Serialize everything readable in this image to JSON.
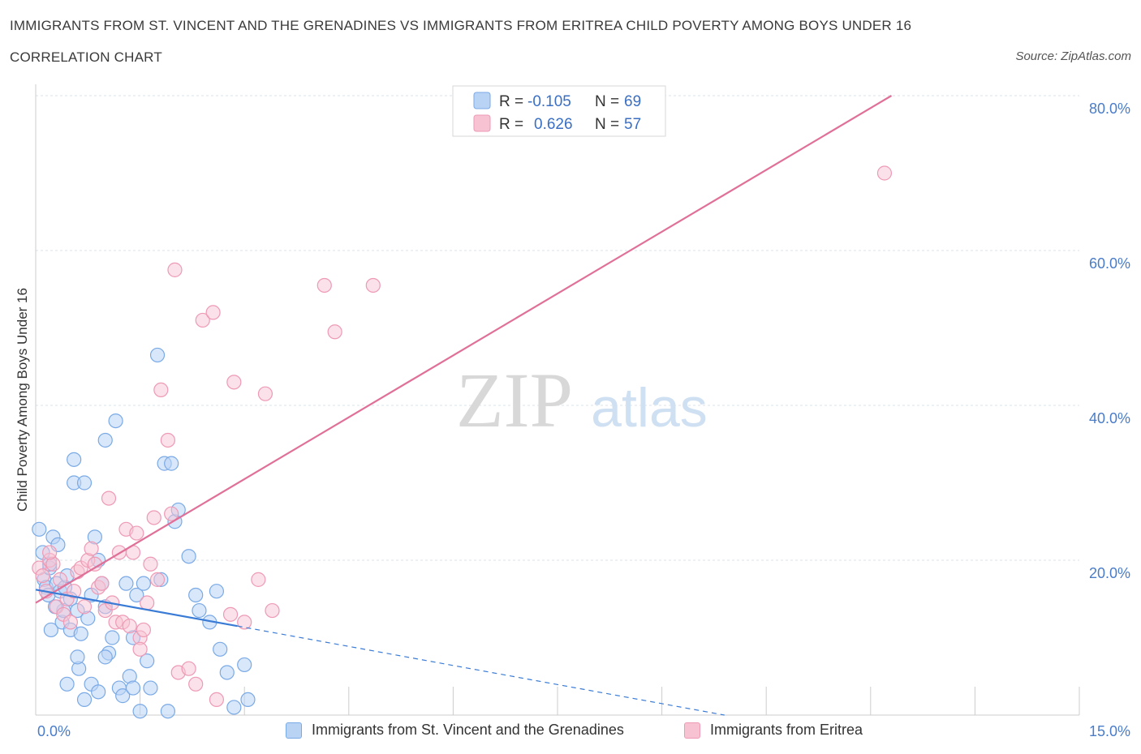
{
  "header": {
    "title": "IMMIGRANTS FROM ST. VINCENT AND THE GRENADINES VS IMMIGRANTS FROM ERITREA CHILD POVERTY AMONG BOYS UNDER 16",
    "subtitle": "CORRELATION CHART",
    "source": "Source: ZipAtlas.com"
  },
  "watermark": {
    "zip": "ZIP",
    "atlas": "atlas"
  },
  "colors": {
    "blue_fill": "#b9d3f5",
    "blue_stroke": "#7aaae6",
    "blue_line": "#3a7bd5",
    "pink_fill": "#f7c3d3",
    "pink_stroke": "#ee9ab5",
    "pink_line": "#e07098",
    "axis_text": "#4a7cc8",
    "grid": "#dde3ea"
  },
  "legend_stats": [
    {
      "r_label": "R =",
      "r_value": "-0.105",
      "n_label": "N =",
      "n_value": "69"
    },
    {
      "r_label": "R =",
      "r_value": "0.626",
      "n_label": "N =",
      "n_value": "57"
    }
  ],
  "legend_bottom": [
    "Immigrants from St. Vincent and the Grenadines",
    "Immigrants from Eritrea"
  ],
  "chart_data": {
    "type": "scatter",
    "title": "IMMIGRANTS FROM ST. VINCENT AND THE GRENADINES VS IMMIGRANTS FROM ERITREA CHILD POVERTY AMONG BOYS UNDER 16",
    "xlabel": "",
    "ylabel": "Child Poverty Among Boys Under 16",
    "xlim": [
      0,
      15
    ],
    "ylim": [
      0,
      80
    ],
    "x_tick_labels": [
      "0.0%",
      "15.0%"
    ],
    "y_ticks": [
      20,
      40,
      60,
      80
    ],
    "y_tick_labels": [
      "20.0%",
      "40.0%",
      "60.0%",
      "80.0%"
    ],
    "series": [
      {
        "name": "Immigrants from St. Vincent and the Grenadines",
        "color": "blue",
        "points": [
          [
            0.05,
            24.0
          ],
          [
            0.1,
            21.0
          ],
          [
            0.12,
            17.5
          ],
          [
            0.15,
            16.5
          ],
          [
            0.18,
            15.5
          ],
          [
            0.2,
            19.0
          ],
          [
            0.22,
            11.0
          ],
          [
            0.25,
            23.0
          ],
          [
            0.3,
            17.0
          ],
          [
            0.32,
            22.0
          ],
          [
            0.35,
            16.0
          ],
          [
            0.38,
            12.0
          ],
          [
            0.4,
            13.5
          ],
          [
            0.42,
            16.5
          ],
          [
            0.45,
            18.0
          ],
          [
            0.45,
            4.0
          ],
          [
            0.5,
            15.0
          ],
          [
            0.5,
            11.0
          ],
          [
            0.55,
            33.0
          ],
          [
            0.55,
            30.0
          ],
          [
            0.6,
            13.5
          ],
          [
            0.62,
            6.0
          ],
          [
            0.65,
            10.5
          ],
          [
            0.7,
            30.0
          ],
          [
            0.75,
            12.5
          ],
          [
            0.8,
            15.5
          ],
          [
            0.8,
            4.0
          ],
          [
            0.85,
            23.0
          ],
          [
            0.9,
            3.0
          ],
          [
            0.95,
            17.0
          ],
          [
            1.0,
            35.5
          ],
          [
            1.0,
            14.0
          ],
          [
            1.05,
            8.0
          ],
          [
            1.1,
            10.0
          ],
          [
            1.15,
            38.0
          ],
          [
            1.2,
            3.5
          ],
          [
            1.25,
            2.5
          ],
          [
            1.3,
            17.0
          ],
          [
            1.35,
            5.0
          ],
          [
            1.4,
            3.5
          ],
          [
            1.45,
            15.5
          ],
          [
            1.5,
            0.5
          ],
          [
            1.55,
            17.0
          ],
          [
            1.6,
            7.0
          ],
          [
            1.65,
            3.5
          ],
          [
            1.75,
            46.5
          ],
          [
            1.8,
            17.5
          ],
          [
            1.85,
            32.5
          ],
          [
            1.9,
            0.5
          ],
          [
            1.95,
            32.5
          ],
          [
            2.0,
            25.0
          ],
          [
            2.05,
            26.5
          ],
          [
            2.2,
            20.5
          ],
          [
            2.3,
            15.5
          ],
          [
            2.35,
            13.5
          ],
          [
            2.5,
            12.0
          ],
          [
            2.6,
            16.0
          ],
          [
            2.65,
            8.5
          ],
          [
            2.75,
            5.5
          ],
          [
            2.85,
            1.0
          ],
          [
            3.0,
            6.5
          ],
          [
            3.05,
            2.0
          ],
          [
            0.28,
            14.0
          ],
          [
            0.6,
            7.5
          ],
          [
            1.0,
            7.5
          ],
          [
            0.7,
            2.0
          ],
          [
            1.4,
            10.0
          ],
          [
            0.9,
            20.0
          ],
          [
            0.2,
            19.5
          ]
        ],
        "trend_solid": [
          [
            0.0,
            16.2
          ],
          [
            2.9,
            11.5
          ]
        ],
        "trend_dashed": [
          [
            2.9,
            11.5
          ],
          [
            9.9,
            0.0
          ]
        ]
      },
      {
        "name": "Immigrants from Eritrea",
        "color": "pink",
        "points": [
          [
            0.05,
            19.0
          ],
          [
            0.1,
            18.0
          ],
          [
            0.15,
            16.0
          ],
          [
            0.2,
            20.0
          ],
          [
            0.25,
            19.5
          ],
          [
            0.3,
            14.0
          ],
          [
            0.35,
            17.5
          ],
          [
            0.4,
            13.0
          ],
          [
            0.45,
            15.0
          ],
          [
            0.5,
            12.0
          ],
          [
            0.55,
            16.0
          ],
          [
            0.6,
            18.5
          ],
          [
            0.65,
            19.0
          ],
          [
            0.7,
            14.0
          ],
          [
            0.75,
            20.0
          ],
          [
            0.8,
            21.5
          ],
          [
            0.85,
            19.5
          ],
          [
            0.9,
            16.5
          ],
          [
            0.95,
            17.0
          ],
          [
            1.0,
            13.5
          ],
          [
            1.05,
            28.0
          ],
          [
            1.1,
            14.5
          ],
          [
            1.15,
            12.0
          ],
          [
            1.2,
            21.0
          ],
          [
            1.25,
            12.0
          ],
          [
            1.3,
            24.0
          ],
          [
            1.35,
            11.5
          ],
          [
            1.4,
            21.0
          ],
          [
            1.45,
            23.5
          ],
          [
            1.5,
            10.0
          ],
          [
            1.55,
            11.0
          ],
          [
            1.6,
            14.5
          ],
          [
            1.65,
            19.5
          ],
          [
            1.7,
            25.5
          ],
          [
            1.75,
            17.5
          ],
          [
            1.8,
            42.0
          ],
          [
            1.9,
            35.5
          ],
          [
            1.95,
            26.0
          ],
          [
            2.0,
            57.5
          ],
          [
            2.05,
            5.5
          ],
          [
            2.2,
            6.0
          ],
          [
            2.3,
            4.0
          ],
          [
            2.4,
            51.0
          ],
          [
            2.55,
            52.0
          ],
          [
            2.6,
            2.0
          ],
          [
            2.8,
            13.0
          ],
          [
            2.85,
            43.0
          ],
          [
            3.0,
            12.0
          ],
          [
            3.2,
            17.5
          ],
          [
            3.3,
            41.5
          ],
          [
            3.4,
            13.5
          ],
          [
            4.15,
            55.5
          ],
          [
            4.3,
            49.5
          ],
          [
            4.85,
            55.5
          ],
          [
            12.2,
            70.0
          ],
          [
            0.2,
            21.0
          ],
          [
            1.5,
            8.5
          ]
        ],
        "trend_solid": [
          [
            0.0,
            14.5
          ],
          [
            12.3,
            80.0
          ]
        ]
      }
    ],
    "legend_position": "top-center"
  }
}
